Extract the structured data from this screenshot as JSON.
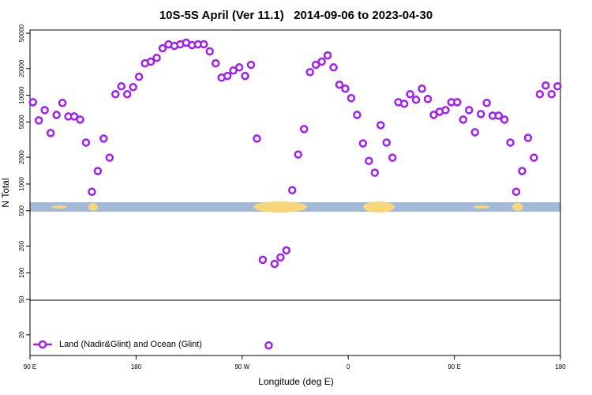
{
  "chart_data": {
    "type": "scatter",
    "title": "10S-5S April (Ver 11.1)   2014-09-06 to 2023-04-30",
    "x_label": "Longitude (deg E)",
    "y_label": "N Total",
    "xlim": [
      90,
      540
    ],
    "xticks": [
      {
        "value": 90,
        "label": "90 E"
      },
      {
        "value": 180,
        "label": "180"
      },
      {
        "value": 270,
        "label": "90 W"
      },
      {
        "value": 360,
        "label": "0"
      },
      {
        "value": 450,
        "label": "90 E"
      },
      {
        "value": 540,
        "label": "180"
      }
    ],
    "ylim": [
      11.7,
      54300
    ],
    "yticks": [
      20,
      50,
      100,
      200,
      500,
      1000,
      2000,
      5000,
      10000,
      20000,
      50000
    ],
    "log_y": true,
    "legend": "bottom-left",
    "x": [
      92.5,
      97.5,
      102.5,
      107.5,
      112.5,
      117.5,
      122.5,
      127.5,
      132.5,
      137.5,
      142.5,
      147.5,
      152.5,
      157.5,
      162.5,
      167.5,
      172.5,
      177.5,
      182.5,
      187.5,
      192.5,
      197.5,
      202.5,
      207.5,
      212.5,
      217.5,
      222.5,
      227.5,
      232.5,
      237.5,
      242.5,
      247.5,
      252.5,
      257.5,
      262.5,
      267.5,
      272.5,
      277.5,
      282.5,
      287.5,
      292.5,
      297.5,
      302.5,
      307.5,
      312.5,
      317.5,
      322.5,
      327.5,
      332.5,
      337.5,
      342.5,
      347.5,
      352.5,
      357.5,
      362.5,
      367.5,
      372.5,
      377.5,
      382.5,
      387.5,
      392.5,
      397.5,
      402.5,
      407.5,
      412.5,
      417.5,
      422.5,
      427.5,
      432.5,
      437.5,
      442.5,
      447.5,
      452.5,
      457.5,
      462.5,
      467.5,
      472.5,
      477.5,
      482.5,
      487.5,
      492.5,
      497.5,
      502.5,
      507.5,
      512.5,
      517.5,
      522.5,
      527.5,
      532.5,
      537.5
    ],
    "series": [
      {
        "name": "Land (Nadir&Glint) and Ocean (Glint)",
        "color": "#a020f0",
        "values": [
          8350,
          5210,
          6800,
          3750,
          6010,
          8190,
          5770,
          5770,
          5320,
          2930,
          818,
          1400,
          3250,
          1980,
          10280,
          12620,
          10280,
          12360,
          16150,
          22900,
          23900,
          26400,
          33800,
          37500,
          36000,
          37500,
          39100,
          36700,
          37500,
          37500,
          31200,
          22900,
          15800,
          16500,
          19000,
          20600,
          16500,
          22000,
          3250,
          140,
          15.2,
          126,
          149,
          179,
          853,
          2150,
          4160,
          18200,
          22000,
          23900,
          28100,
          20600,
          13150,
          11860,
          9270,
          6010,
          2870,
          1820,
          1340,
          4600,
          2930,
          1980,
          8350,
          8020,
          10280,
          8890,
          11860,
          9080,
          6010,
          6530,
          6800,
          8350,
          8350,
          5320,
          6800,
          3830,
          6140,
          8190,
          5890,
          5890,
          5320,
          2930,
          818,
          1400,
          3310,
          1980,
          10280,
          12880,
          10280,
          12620
        ]
      }
    ]
  }
}
